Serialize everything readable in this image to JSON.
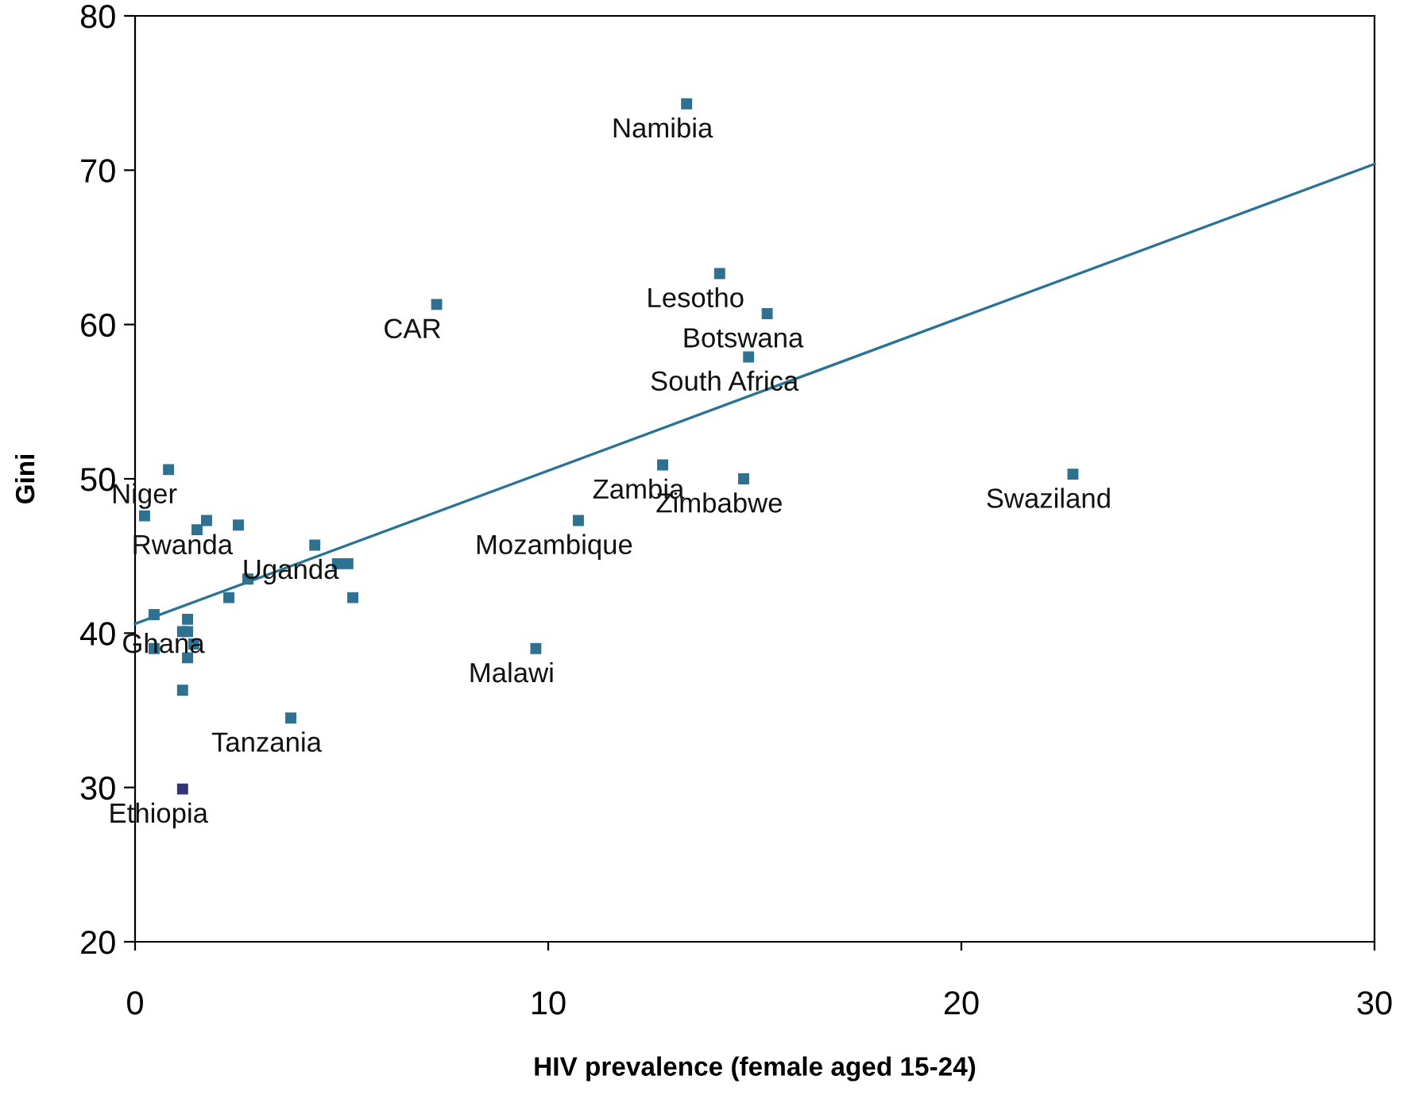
{
  "chart_data": {
    "type": "scatter",
    "xlabel": "HIV prevalence (female aged 15-24)",
    "ylabel": "Gini",
    "xlim": [
      0,
      30
    ],
    "xticks": [
      0,
      10,
      20,
      30
    ],
    "ylim": [
      20,
      80
    ],
    "yticks": [
      20,
      30,
      40,
      50,
      60,
      70,
      80
    ],
    "grid": false,
    "marker": "square",
    "series": [
      {
        "color": "#2e7191",
        "x": [
          0.81,
          0.23,
          1.5,
          1.73,
          2.5,
          4.35,
          4.9,
          5.15,
          2.73,
          2.27,
          5.27,
          0.46,
          1.27,
          1.15,
          1.27,
          1.42,
          0.46,
          1.27,
          1.15,
          3.77,
          1.15,
          7.3,
          14.15,
          15.3,
          14.85,
          12.77,
          14.73,
          10.73,
          9.7,
          13.35,
          22.7
        ],
        "values": [
          50.6,
          47.6,
          46.7,
          47.3,
          47.0,
          45.7,
          44.5,
          44.5,
          43.5,
          42.3,
          42.3,
          41.2,
          40.9,
          40.1,
          40.1,
          39.3,
          39.0,
          38.4,
          36.3,
          34.5,
          29.9,
          61.3,
          63.3,
          60.7,
          57.9,
          50.9,
          50.0,
          47.3,
          39.0,
          74.3,
          50.3
        ],
        "colors": [
          "#2e7191",
          "#2e7191",
          "#2e7191",
          "#2e7191",
          "#2e7191",
          "#2e7191",
          "#2e7191",
          "#2e7191",
          "#2e7191",
          "#2e7191",
          "#2e7191",
          "#2e7191",
          "#2e7191",
          "#2e7191",
          "#2e7191",
          "#2e7191",
          "#2e7191",
          "#2e7191",
          "#2e7191",
          "#2e7191",
          "#33337a",
          "#2e7191",
          "#2e7191",
          "#2e7191",
          "#2e7191",
          "#2e7191",
          "#2e7191",
          "#2e7191",
          "#2e7191",
          "#2e7191",
          "#2e7191"
        ]
      },
      {
        "type": "line",
        "color": "#2a7394",
        "x": [
          0,
          30
        ],
        "values": [
          40.6,
          70.4
        ],
        "marker": "none"
      }
    ],
    "annotations": [
      {
        "text": "Niger",
        "x": 0.81,
        "y": 50.6
      },
      {
        "text": "Rwanda",
        "x": 1.73,
        "y": 47.3
      },
      {
        "text": "Uganda",
        "x": 4.35,
        "y": 45.7
      },
      {
        "text": "Ghana",
        "x": 1.27,
        "y": 40.9
      },
      {
        "text": "Tanzania",
        "x": 3.77,
        "y": 34.5
      },
      {
        "text": "Ethiopia",
        "x": 1.15,
        "y": 29.9
      },
      {
        "text": "CAR",
        "x": 7.3,
        "y": 61.3
      },
      {
        "text": "Namibia",
        "x": 13.35,
        "y": 74.3
      },
      {
        "text": "Lesotho",
        "x": 14.15,
        "y": 63.3
      },
      {
        "text": "Botswana",
        "x": 15.3,
        "y": 60.7
      },
      {
        "text": "South Africa",
        "x": 14.85,
        "y": 57.9
      },
      {
        "text": "Zambia",
        "x": 12.77,
        "y": 50.9
      },
      {
        "text": "Zimbabwe",
        "x": 14.73,
        "y": 50.0
      },
      {
        "text": "Mozambique",
        "x": 10.73,
        "y": 47.3
      },
      {
        "text": "Malawi",
        "x": 9.7,
        "y": 39.0
      },
      {
        "text": "Swaziland",
        "x": 22.7,
        "y": 50.3
      }
    ]
  }
}
